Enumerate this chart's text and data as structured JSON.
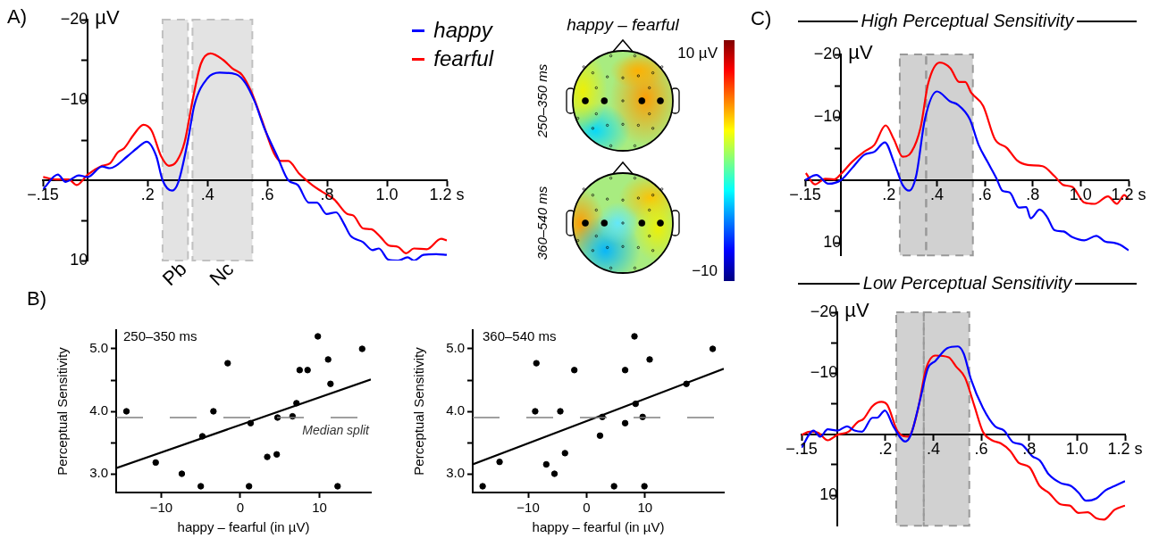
{
  "chart_data": [
    {
      "type": "line",
      "annotations": [
        "A)"
      ],
      "ylabel": "µV",
      "legend": "top right",
      "xlim": [
        -0.15,
        1.2
      ],
      "xticks": [
        {
          "value": -0.15,
          "label": "−.15"
        },
        {
          "value": 0.2,
          "label": ".2"
        },
        {
          "value": 0.4,
          "label": ".4"
        },
        {
          "value": 0.6,
          "label": ".6"
        },
        {
          "value": 0.8,
          "label": ".8"
        },
        {
          "value": 1.0,
          "label": "1.0"
        },
        {
          "value": 1.2,
          "label": "1.2 s"
        }
      ],
      "ylim": [
        10,
        -20
      ],
      "yticks": [
        {
          "value": -20,
          "label": "−20"
        },
        {
          "value": -15,
          "label": null
        },
        {
          "value": -10,
          "label": "−10"
        },
        {
          "value": -5,
          "label": null
        },
        {
          "value": 5,
          "label": null
        },
        {
          "value": 10,
          "label": "10"
        }
      ],
      "bands": [
        {
          "axis": "x",
          "from": 0.25,
          "to": 0.335,
          "label": "Pb",
          "color": "#c0c0c0"
        },
        {
          "axis": "x",
          "from": 0.35,
          "to": 0.55,
          "label": "Nc",
          "color": "#c0c0c0"
        }
      ],
      "series": [
        {
          "name": "happy",
          "color": "#0000ff",
          "x": [
            -0.149,
            -0.1,
            -0.074,
            -0.03,
            0,
            0.048,
            0.074,
            0.133,
            0.165,
            0.197,
            0.229,
            0.25,
            0.282,
            0.303,
            0.335,
            0.356,
            0.4,
            0.441,
            0.495,
            0.527,
            0.559,
            0.59,
            0.633,
            0.67,
            0.702,
            0.739,
            0.766,
            0.798,
            0.83,
            0.856,
            0.878,
            0.92,
            0.952,
            0.973,
            1.005,
            1.037,
            1.069,
            1.09,
            1.122,
            1.165,
            1.2
          ],
          "values": [
            1.1,
            -0.7,
            0.2,
            -0.6,
            -0.4,
            -1.7,
            -1.5,
            -3.0,
            -4.0,
            -4.8,
            -3.0,
            0,
            1.3,
            0.2,
            -5.0,
            -9.3,
            -12.7,
            -13.4,
            -13.2,
            -12.1,
            -9.7,
            -6.5,
            -3.0,
            0,
            0.6,
            2.8,
            2.8,
            4.2,
            4.0,
            5.4,
            6.9,
            7.7,
            8.7,
            8.5,
            9.9,
            10.0,
            9.6,
            10.0,
            9.3,
            9.2,
            9.3
          ]
        },
        {
          "name": "fearful",
          "color": "#ff0000",
          "x": [
            -0.149,
            -0.106,
            -0.064,
            -0.037,
            0,
            0.048,
            0.074,
            0.101,
            0.122,
            0.154,
            0.186,
            0.213,
            0.245,
            0.271,
            0.298,
            0.324,
            0.351,
            0.378,
            0.41,
            0.452,
            0.484,
            0.516,
            0.548,
            0.58,
            0.622,
            0.644,
            0.67,
            0.707,
            0.75,
            0.782,
            0.824,
            0.867,
            0.888,
            0.92,
            0.947,
            0.979,
            1.005,
            1.037,
            1.064,
            1.09,
            1.133,
            1.181,
            1.2
          ],
          "values": [
            -0.4,
            -0.1,
            -0.1,
            0.6,
            -0.7,
            -1.8,
            -2.1,
            -3.5,
            -4.0,
            -5.7,
            -6.9,
            -6.2,
            -3.0,
            -1.8,
            -2.4,
            -4.8,
            -10.1,
            -14.5,
            -15.8,
            -15.0,
            -13.9,
            -13.1,
            -10.9,
            -7.7,
            -3.4,
            -2.4,
            -2.4,
            -0.8,
            0.6,
            1.4,
            2.4,
            4.2,
            4.4,
            6.0,
            6.1,
            7.1,
            8.1,
            8.3,
            9.1,
            8.5,
            8.6,
            7.3,
            7.5
          ]
        }
      ]
    },
    {
      "type": "other",
      "title": "happy – fearful",
      "annotations": [
        "250–350 ms",
        "360–540 ms",
        "10 µV",
        "−10"
      ]
    },
    {
      "type": "scatter",
      "annotations": [
        "B)",
        "250–350 ms"
      ],
      "xlabel": "happy – fearful (in µV)",
      "ylabel": "Perceptual Sensitivity",
      "marker": "circle",
      "xlim": [
        -15.7,
        16.5
      ],
      "xticks": [
        {
          "value": -10,
          "label": "−10"
        },
        {
          "value": 0,
          "label": "0"
        },
        {
          "value": 10,
          "label": "10"
        }
      ],
      "ylim": [
        2.7,
        5.3
      ],
      "yticks": [
        {
          "value": 3,
          "label": "3.0"
        },
        {
          "value": 3.5,
          "label": null
        },
        {
          "value": 4,
          "label": "4.0"
        },
        {
          "value": 4.5,
          "label": null
        },
        {
          "value": 5,
          "label": "5.0"
        }
      ],
      "ref_lines": [
        {
          "axis": "y",
          "value": 3.9,
          "label": "Median split",
          "color": "#808080",
          "line_style": "dashed"
        }
      ],
      "series": [
        {
          "color": "#000000",
          "x": [
            -14.4,
            -10.7,
            -7.4,
            -5.0,
            -4.8,
            -3.4,
            -1.6,
            1.1,
            1.3,
            3.4,
            4.6,
            4.7,
            6.6,
            7.1,
            7.5,
            8.5,
            9.8,
            11.1,
            11.4,
            12.3,
            15.4
          ],
          "values": [
            4.0,
            3.18,
            3.0,
            2.8,
            3.6,
            4.0,
            4.77,
            2.8,
            3.81,
            3.27,
            3.31,
            3.9,
            3.92,
            4.13,
            4.66,
            4.66,
            5.2,
            4.83,
            4.44,
            2.8,
            5.0
          ]
        },
        {
          "type": "line",
          "marker": "none",
          "color": "#000000",
          "x": [
            -15.7,
            16.5
          ],
          "values": [
            3.09,
            4.51
          ]
        }
      ]
    },
    {
      "type": "scatter",
      "annotations": [
        "360–540 ms"
      ],
      "xlabel": "happy – fearful (in µV)",
      "ylabel": "Perceptual Sensitivity",
      "marker": "circle",
      "xlim": [
        -19.5,
        23.5
      ],
      "xticks": [
        {
          "value": -10,
          "label": "−10"
        },
        {
          "value": 0,
          "label": "0"
        },
        {
          "value": 10,
          "label": "10"
        }
      ],
      "ylim": [
        2.7,
        5.3
      ],
      "yticks": [
        {
          "value": 3,
          "label": "3.0"
        },
        {
          "value": 3.5,
          "label": null
        },
        {
          "value": 4,
          "label": "4.0"
        },
        {
          "value": 4.5,
          "label": null
        },
        {
          "value": 5,
          "label": "5.0"
        }
      ],
      "ref_lines": [
        {
          "axis": "y",
          "value": 3.9,
          "color": "#808080",
          "line_style": "dashed"
        }
      ],
      "series": [
        {
          "color": "#000000",
          "x": [
            -17.8,
            -14.9,
            -8.6,
            -8.8,
            -6.9,
            -5.5,
            -4.5,
            -3.7,
            -2.1,
            2.3,
            2.7,
            4.7,
            6.6,
            6.6,
            8.2,
            8.4,
            9.6,
            9.9,
            10.8,
            17.1,
            21.6
          ],
          "values": [
            2.8,
            3.19,
            4.77,
            4.0,
            3.15,
            3.0,
            4.0,
            3.33,
            4.66,
            3.61,
            3.91,
            2.8,
            4.66,
            3.81,
            5.2,
            4.12,
            3.91,
            2.8,
            4.83,
            4.44,
            5.0
          ]
        },
        {
          "type": "line",
          "marker": "none",
          "color": "#000000",
          "x": [
            -19.5,
            23.5
          ],
          "values": [
            3.15,
            4.68
          ]
        }
      ]
    },
    {
      "type": "line",
      "title": "High Perceptual Sensitivity",
      "annotations": [
        "C)"
      ],
      "ylabel": "µV",
      "xlim": [
        -0.15,
        1.2
      ],
      "xticks": [
        {
          "value": -0.15,
          "label": "−.15"
        },
        {
          "value": 0.2,
          "label": ".2"
        },
        {
          "value": 0.4,
          "label": ".4"
        },
        {
          "value": 0.6,
          "label": ".6"
        },
        {
          "value": 0.8,
          "label": ".8"
        },
        {
          "value": 1.0,
          "label": "1.0"
        },
        {
          "value": 1.2,
          "label": "1.2 s"
        }
      ],
      "ylim": [
        12,
        -20
      ],
      "yticks": [
        {
          "value": -20,
          "label": "−20"
        },
        {
          "value": -15,
          "label": null
        },
        {
          "value": -10,
          "label": "−10"
        },
        {
          "value": -5,
          "label": null
        },
        {
          "value": 5,
          "label": null
        },
        {
          "value": 10,
          "label": "10"
        }
      ],
      "bands": [
        {
          "axis": "x",
          "from": 0.245,
          "to": 0.355,
          "color": "#999999"
        },
        {
          "axis": "x",
          "from": 0.355,
          "to": 0.55,
          "color": "#999999"
        }
      ],
      "series": [
        {
          "color": "#0000ff",
          "x": [
            -0.15,
            -0.103,
            -0.053,
            0,
            0.046,
            0.096,
            0.139,
            0.183,
            0.22,
            0.257,
            0.284,
            0.313,
            0.35,
            0.4,
            0.456,
            0.487,
            0.537,
            0.574,
            0.611,
            0.648,
            0.673,
            0.704,
            0.742,
            0.773,
            0.791,
            0.829,
            0.86,
            0.891,
            0.928,
            0.965,
            1.015,
            1.065,
            1.102,
            1.139,
            1.164,
            1.2
          ],
          "values": [
            0,
            -0.8,
            0.6,
            0,
            -1.9,
            -4.0,
            -4.5,
            -6.0,
            -2.9,
            0.8,
            1.7,
            -0.6,
            -9.7,
            -14.1,
            -12.5,
            -12.0,
            -9.7,
            -5.6,
            -2.9,
            -0.3,
            1.7,
            2.0,
            4.4,
            4.3,
            6.1,
            4.7,
            5.9,
            8.0,
            8.2,
            9.1,
            9.6,
            8.9,
            9.8,
            10.0,
            10.3,
            11.2
          ]
        },
        {
          "color": "#ff0000",
          "x": [
            -0.147,
            -0.109,
            -0.066,
            -0.029,
            0,
            0.046,
            0.096,
            0.139,
            0.186,
            0.22,
            0.257,
            0.294,
            0.332,
            0.363,
            0.412,
            0.456,
            0.493,
            0.518,
            0.543,
            0.593,
            0.642,
            0.692,
            0.735,
            0.779,
            0.841,
            0.891,
            0.928,
            0.965,
            1.015,
            1.058,
            1.114,
            1.151,
            1.182,
            1.2
          ],
          "values": [
            -1.1,
            0.7,
            -0.2,
            -0.1,
            -1.0,
            -2.9,
            -4.5,
            -5.6,
            -8.7,
            -6.5,
            -3.7,
            -4.5,
            -8.4,
            -15.3,
            -18.7,
            -17.8,
            -15.6,
            -15.6,
            -13.9,
            -11.8,
            -6.5,
            -5.1,
            -3.1,
            -2.4,
            -2.2,
            -0.6,
            0.8,
            1.1,
            3.6,
            3.8,
            2.6,
            3.8,
            2.4,
            3.1
          ]
        }
      ]
    },
    {
      "type": "line",
      "title": "Low Perceptual Sensitivity",
      "ylabel": "µV",
      "xlim": [
        -0.15,
        1.2
      ],
      "xticks": [
        {
          "value": -0.15,
          "label": "−.15"
        },
        {
          "value": 0.2,
          "label": ".2"
        },
        {
          "value": 0.4,
          "label": ".4"
        },
        {
          "value": 0.6,
          "label": ".6"
        },
        {
          "value": 0.8,
          "label": ".8"
        },
        {
          "value": 1.0,
          "label": "1.0"
        },
        {
          "value": 1.2,
          "label": "1.2 s"
        }
      ],
      "ylim": [
        15,
        -20
      ],
      "yticks": [
        {
          "value": -20,
          "label": "−20"
        },
        {
          "value": -15,
          "label": null
        },
        {
          "value": -10,
          "label": "−10"
        },
        {
          "value": -5,
          "label": null
        },
        {
          "value": 5,
          "label": null
        },
        {
          "value": 10,
          "label": "10"
        }
      ],
      "bands": [
        {
          "axis": "x",
          "from": 0.245,
          "to": 0.36,
          "color": "#999999"
        },
        {
          "axis": "x",
          "from": 0.36,
          "to": 0.55,
          "color": "#999999"
        }
      ],
      "series": [
        {
          "color": "#0000ff",
          "x": [
            -0.15,
            -0.1,
            -0.072,
            -0.041,
            0,
            0.04,
            0.071,
            0.102,
            0.146,
            0.165,
            0.198,
            0.233,
            0.283,
            0.308,
            0.345,
            0.377,
            0.408,
            0.458,
            0.502,
            0.527,
            0.557,
            0.607,
            0.657,
            0.695,
            0.732,
            0.769,
            0.813,
            0.844,
            0.882,
            0.931,
            0.975,
            1.006,
            1.037,
            1.081,
            1.118,
            1.156,
            1.2
          ],
          "values": [
            2.2,
            -0.6,
            0.4,
            -0.8,
            -0.6,
            -1.3,
            -0.6,
            -0.4,
            -2.7,
            -2.7,
            -3.9,
            -1.3,
            1.2,
            -0.1,
            -5.7,
            -10.8,
            -12.0,
            -14.1,
            -14.4,
            -13.2,
            -9.0,
            -4.3,
            -1.3,
            -0.6,
            1.3,
            1.7,
            3.6,
            4.3,
            6.6,
            8.0,
            8.5,
            9.6,
            10.9,
            10.5,
            9.2,
            8.5,
            7.7
          ]
        },
        {
          "color": "#ff0000",
          "x": [
            -0.15,
            -0.116,
            -0.079,
            -0.041,
            0,
            0.046,
            0.084,
            0.108,
            0.146,
            0.183,
            0.208,
            0.252,
            0.296,
            0.333,
            0.37,
            0.408,
            0.464,
            0.495,
            0.532,
            0.57,
            0.607,
            0.645,
            0.682,
            0.72,
            0.757,
            0.801,
            0.844,
            0.882,
            0.931,
            0.969,
            1.006,
            1.044,
            1.081,
            1.112,
            1.156,
            1.2
          ],
          "values": [
            0.1,
            -0.4,
            -0.2,
            1.0,
            0.1,
            -0.4,
            -2.0,
            -2.5,
            -4.6,
            -5.3,
            -4.8,
            -0.4,
            0.4,
            -3.6,
            -10.8,
            -12.9,
            -12.6,
            -11.1,
            -9.3,
            -4.8,
            -0.4,
            1.0,
            1.5,
            2.7,
            4.7,
            5.4,
            8.5,
            9.6,
            11.5,
            11.7,
            12.9,
            12.8,
            13.8,
            14.0,
            12.4,
            11.7
          ]
        }
      ]
    }
  ]
}
